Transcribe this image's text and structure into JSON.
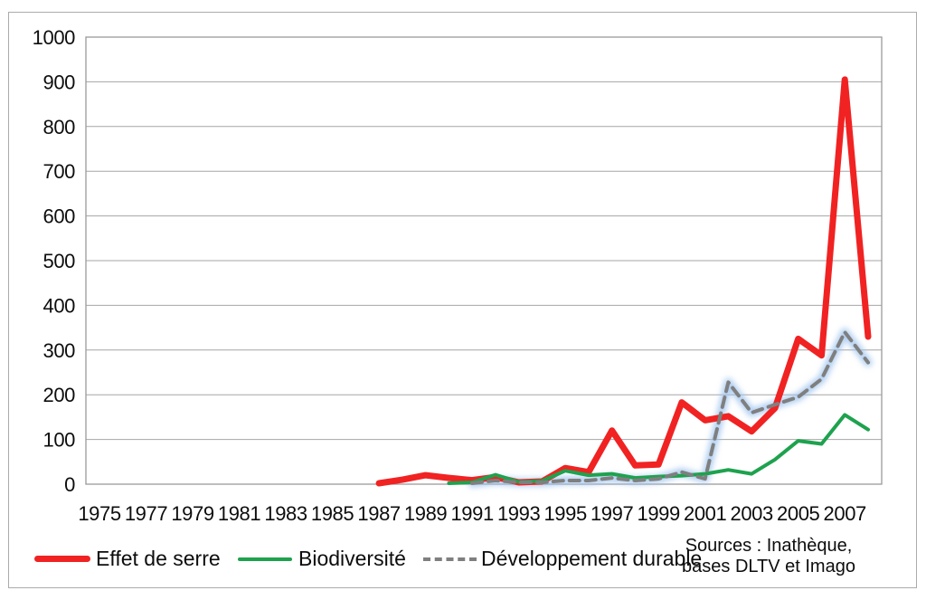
{
  "chart_data": {
    "type": "line",
    "title": "",
    "grid": true,
    "legend_position": "bottom",
    "x_axis": {
      "tick_labels": [
        "1975",
        "1977",
        "1979",
        "1981",
        "1983",
        "1985",
        "1987",
        "1989",
        "1991",
        "1993",
        "1995",
        "1997",
        "1999",
        "2001",
        "2003",
        "2005",
        "2007"
      ],
      "first_year": 1975,
      "last_year": 2008
    },
    "y_axis": {
      "min": 0,
      "max": 1000,
      "step": 100,
      "ticks": [
        0,
        100,
        200,
        300,
        400,
        500,
        600,
        700,
        800,
        900,
        1000
      ]
    },
    "series": [
      {
        "name": "Effet de serre",
        "color": "#f12222",
        "line_style": "solid",
        "line_width": 7,
        "glow": false,
        "points": [
          [
            1987,
            2
          ],
          [
            1988,
            10
          ],
          [
            1989,
            20
          ],
          [
            1990,
            14
          ],
          [
            1991,
            9
          ],
          [
            1992,
            16
          ],
          [
            1993,
            4
          ],
          [
            1994,
            6
          ],
          [
            1995,
            36
          ],
          [
            1996,
            27
          ],
          [
            1997,
            120
          ],
          [
            1998,
            42
          ],
          [
            1999,
            44
          ],
          [
            2000,
            183
          ],
          [
            2001,
            143
          ],
          [
            2002,
            152
          ],
          [
            2003,
            118
          ],
          [
            2004,
            170
          ],
          [
            2005,
            325
          ],
          [
            2006,
            288
          ],
          [
            2007,
            905
          ],
          [
            2008,
            330
          ]
        ]
      },
      {
        "name": "Biodiversité",
        "color": "#1ea24e",
        "line_style": "solid",
        "line_width": 4,
        "glow": false,
        "points": [
          [
            1990,
            2
          ],
          [
            1991,
            4
          ],
          [
            1992,
            21
          ],
          [
            1993,
            5
          ],
          [
            1994,
            7
          ],
          [
            1995,
            30
          ],
          [
            1996,
            20
          ],
          [
            1997,
            23
          ],
          [
            1998,
            14
          ],
          [
            1999,
            17
          ],
          [
            2000,
            19
          ],
          [
            2001,
            23
          ],
          [
            2002,
            32
          ],
          [
            2003,
            23
          ],
          [
            2004,
            55
          ],
          [
            2005,
            97
          ],
          [
            2006,
            90
          ],
          [
            2007,
            155
          ],
          [
            2008,
            122
          ]
        ]
      },
      {
        "name": "Développement durable",
        "color": "#7f7f7f",
        "line_style": "dashed",
        "line_width": 4,
        "glow": true,
        "points": [
          [
            1991,
            2
          ],
          [
            1992,
            8
          ],
          [
            1993,
            4
          ],
          [
            1994,
            4
          ],
          [
            1995,
            8
          ],
          [
            1996,
            8
          ],
          [
            1997,
            14
          ],
          [
            1998,
            8
          ],
          [
            1999,
            12
          ],
          [
            2000,
            27
          ],
          [
            2001,
            12
          ],
          [
            2002,
            228
          ],
          [
            2003,
            160
          ],
          [
            2004,
            178
          ],
          [
            2005,
            195
          ],
          [
            2006,
            235
          ],
          [
            2007,
            340
          ],
          [
            2008,
            272
          ]
        ]
      }
    ],
    "glow_color": "#9cc2ee",
    "legend": [
      {
        "label": "Effet de serre",
        "color": "#f12222",
        "style": "solid-thick"
      },
      {
        "label": "Biodiversité",
        "color": "#1ea24e",
        "style": "solid"
      },
      {
        "label": "Développement durable",
        "color": "#7f7f7f",
        "style": "dashed"
      }
    ],
    "source_note": [
      "Sources : Inathèque,",
      "bases DLTV et Imago"
    ]
  }
}
